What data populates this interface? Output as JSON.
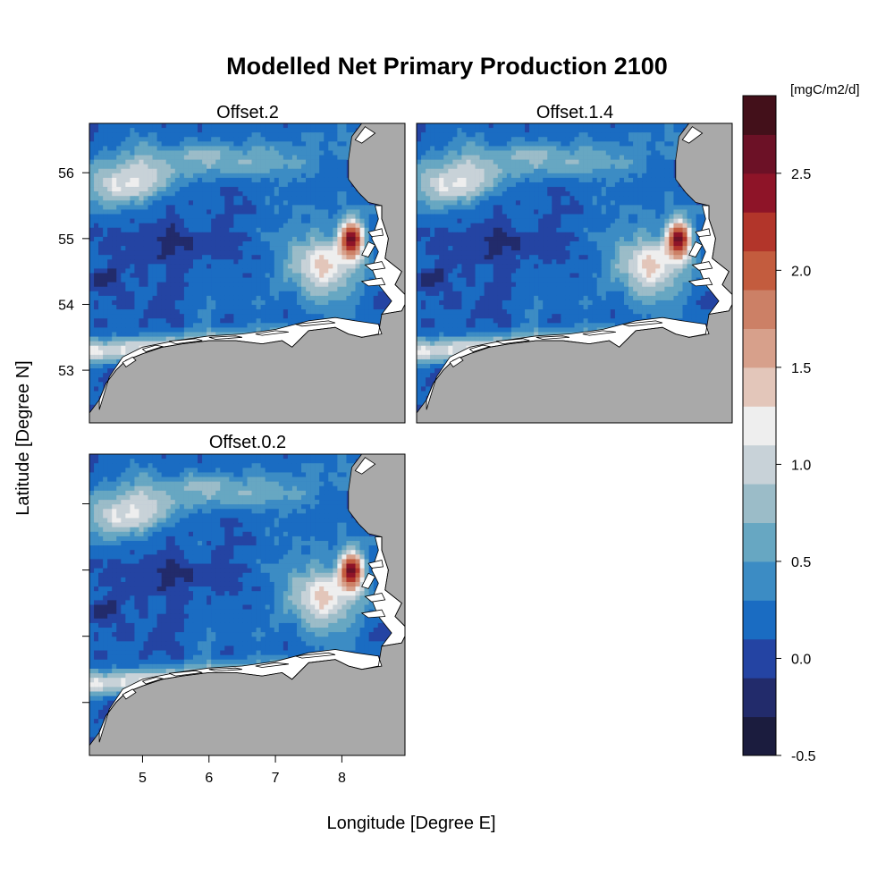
{
  "title": "Modelled Net Primary Production 2100",
  "xlabel": "Longitude [Degree E]",
  "ylabel": "Latitude [Degree N]",
  "colorbar": {
    "unit": "[mgC/m2/d]",
    "min": -0.5,
    "max": 2.9,
    "tick_labels": [
      "2.5",
      "2.0",
      "1.5",
      "1.0",
      "0.5",
      "0.0",
      "-0.5"
    ],
    "colors": [
      "#1b1c3e",
      "#222b6b",
      "#2444a3",
      "#1a6cc2",
      "#3c8cc4",
      "#67a7c2",
      "#9bbcc8",
      "#c8d2d8",
      "#eeeeee",
      "#e3c6ba",
      "#d7a08b",
      "#cc8066",
      "#c35c3e",
      "#b2352a",
      "#8e1428",
      "#6c1126",
      "#43101a"
    ]
  },
  "chart_data": [
    {
      "type": "heatmap",
      "title": "Offset.2",
      "x_range": [
        4.2,
        8.95
      ],
      "y_range": [
        52.2,
        56.75
      ],
      "x_ticks": [
        "5",
        "6",
        "7",
        "8"
      ],
      "y_ticks": [
        "53",
        "54",
        "55",
        "56"
      ],
      "value_range": [
        -0.5,
        2.9
      ],
      "hotspot_max": 2.9
    },
    {
      "type": "heatmap",
      "title": "Offset.1.4",
      "x_range": [
        4.2,
        8.95
      ],
      "y_range": [
        52.2,
        56.75
      ],
      "x_ticks": [
        "5",
        "6",
        "7",
        "8"
      ],
      "y_ticks": [
        "53",
        "54",
        "55",
        "56"
      ],
      "value_range": [
        -0.5,
        2.9
      ],
      "hotspot_max": 2.9
    },
    {
      "type": "heatmap",
      "title": "Offset.0.2",
      "x_range": [
        4.2,
        8.95
      ],
      "y_range": [
        52.2,
        56.75
      ],
      "x_ticks": [
        "5",
        "6",
        "7",
        "8"
      ],
      "y_ticks": [
        "53",
        "54",
        "55",
        "56"
      ],
      "value_range": [
        -0.5,
        2.9
      ],
      "hotspot_max": 2.9
    }
  ]
}
